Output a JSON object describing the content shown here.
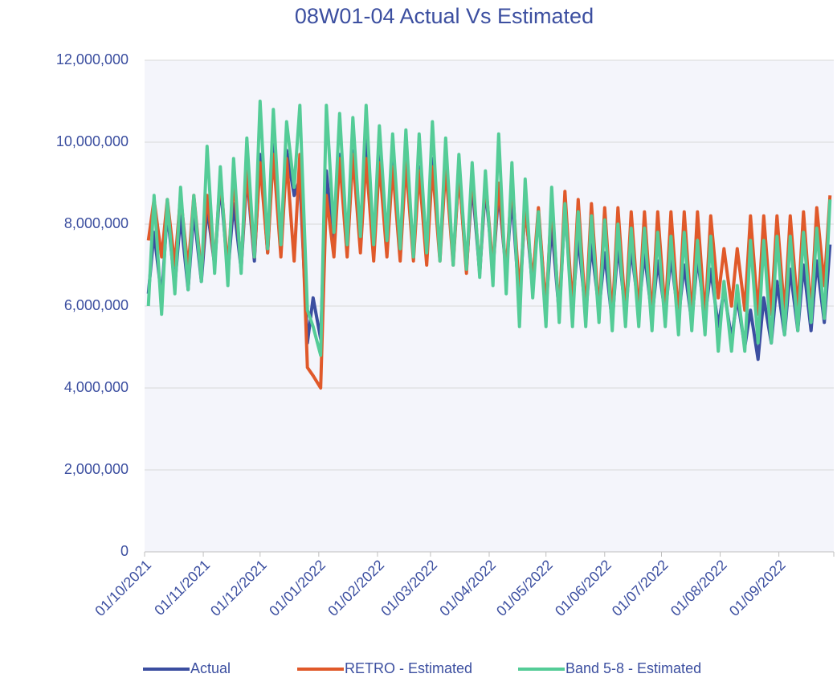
{
  "chart_data": {
    "type": "line",
    "title": "08W01-04 Actual Vs Estimated",
    "x": [
      "03/10/2021",
      "06/10/2021",
      "10/10/2021",
      "13/10/2021",
      "17/10/2021",
      "20/10/2021",
      "24/10/2021",
      "27/10/2021",
      "31/10/2021",
      "03/11/2021",
      "07/11/2021",
      "10/11/2021",
      "14/11/2021",
      "17/11/2021",
      "21/11/2021",
      "24/11/2021",
      "28/11/2021",
      "01/12/2021",
      "05/12/2021",
      "08/12/2021",
      "12/12/2021",
      "15/12/2021",
      "19/12/2021",
      "22/12/2021",
      "26/12/2021",
      "29/12/2021",
      "02/01/2022",
      "05/01/2022",
      "09/01/2022",
      "12/01/2022",
      "16/01/2022",
      "19/01/2022",
      "23/01/2022",
      "26/01/2022",
      "30/01/2022",
      "02/02/2022",
      "06/02/2022",
      "09/02/2022",
      "13/02/2022",
      "16/02/2022",
      "20/02/2022",
      "23/02/2022",
      "27/02/2022",
      "02/03/2022",
      "06/03/2022",
      "09/03/2022",
      "13/03/2022",
      "16/03/2022",
      "20/03/2022",
      "23/03/2022",
      "27/03/2022",
      "30/03/2022",
      "03/04/2022",
      "06/04/2022",
      "10/04/2022",
      "13/04/2022",
      "17/04/2022",
      "20/04/2022",
      "24/04/2022",
      "27/04/2022",
      "01/05/2022",
      "04/05/2022",
      "08/05/2022",
      "11/05/2022",
      "15/05/2022",
      "18/05/2022",
      "22/05/2022",
      "25/05/2022",
      "29/05/2022",
      "01/06/2022",
      "05/06/2022",
      "08/06/2022",
      "12/06/2022",
      "15/06/2022",
      "19/06/2022",
      "22/06/2022",
      "26/06/2022",
      "29/06/2022",
      "03/07/2022",
      "06/07/2022",
      "10/07/2022",
      "13/07/2022",
      "17/07/2022",
      "20/07/2022",
      "24/07/2022",
      "27/07/2022",
      "31/07/2022",
      "03/08/2022",
      "07/08/2022",
      "10/08/2022",
      "14/08/2022",
      "17/08/2022",
      "21/08/2022",
      "24/08/2022",
      "28/08/2022",
      "31/08/2022",
      "04/09/2022",
      "07/09/2022",
      "11/09/2022",
      "14/09/2022",
      "18/09/2022",
      "21/09/2022",
      "25/09/2022",
      "28/09/2022"
    ],
    "series": [
      {
        "name": "Actual",
        "color": "#3b4ea0",
        "values": [
          6300000,
          7800000,
          6200000,
          8300000,
          6500000,
          8200000,
          6400000,
          8300000,
          6600000,
          8400000,
          7000000,
          9000000,
          6800000,
          8500000,
          6900000,
          9200000,
          7100000,
          9700000,
          7300000,
          10000000,
          7500000,
          9800000,
          8700000,
          9100000,
          5100000,
          6200000,
          5200000,
          9300000,
          7400000,
          9700000,
          7300000,
          9800000,
          7500000,
          10300000,
          7300000,
          9700000,
          7400000,
          9500000,
          7200000,
          9800000,
          7300000,
          9400000,
          7200000,
          9600000,
          7300000,
          9500000,
          7100000,
          9300000,
          6900000,
          9000000,
          6800000,
          8900000,
          6900000,
          8800000,
          6800000,
          8700000,
          6000000,
          8500000,
          6400000,
          8300000,
          5900000,
          8000000,
          5800000,
          8400000,
          5900000,
          7700000,
          5800000,
          7500000,
          5900000,
          7300000,
          5600000,
          7500000,
          5800000,
          7400000,
          5900000,
          7300000,
          5700000,
          7100000,
          5800000,
          7200000,
          5700000,
          7000000,
          5600000,
          7200000,
          5700000,
          6900000,
          5500000,
          6400000,
          5200000,
          6200000,
          5000000,
          5900000,
          4700000,
          6200000,
          5100000,
          6600000,
          5300000,
          6900000,
          5400000,
          7000000,
          5400000,
          7100000,
          5600000,
          7500000
        ]
      },
      {
        "name": "RETRO - Estimated",
        "color": "#e0592a",
        "values": [
          7600000,
          8600000,
          7200000,
          8600000,
          7000000,
          8700000,
          6900000,
          8700000,
          6800000,
          8700000,
          7000000,
          9200000,
          6900000,
          9100000,
          7000000,
          9300000,
          7200000,
          9500000,
          7300000,
          9700000,
          7200000,
          9600000,
          7100000,
          9700000,
          4500000,
          4300000,
          4000000,
          8700000,
          7200000,
          9600000,
          7200000,
          9700000,
          7300000,
          9600000,
          7100000,
          9500000,
          7200000,
          9400000,
          7100000,
          9500000,
          7100000,
          9300000,
          7000000,
          9400000,
          7100000,
          9400000,
          7000000,
          9300000,
          6800000,
          9300000,
          6800000,
          9100000,
          6900000,
          9000000,
          6800000,
          9100000,
          6300000,
          8400000,
          6600000,
          8400000,
          5900000,
          8600000,
          5800000,
          8800000,
          5900000,
          8600000,
          5800000,
          8500000,
          5800000,
          8400000,
          5700000,
          8400000,
          5800000,
          8300000,
          5800000,
          8300000,
          5700000,
          8300000,
          5800000,
          8300000,
          5700000,
          8300000,
          5700000,
          8300000,
          5700000,
          8200000,
          6200000,
          7400000,
          6000000,
          7400000,
          5900000,
          8200000,
          5800000,
          8200000,
          5800000,
          8200000,
          5800000,
          8200000,
          5900000,
          8300000,
          5800000,
          8400000,
          6500000,
          8700000
        ]
      },
      {
        "name": "Band 5-8 - Estimated",
        "color": "#54cc97",
        "values": [
          6000000,
          8700000,
          5800000,
          8600000,
          6300000,
          8900000,
          6400000,
          8700000,
          6600000,
          9900000,
          6800000,
          9400000,
          6500000,
          9600000,
          6800000,
          10100000,
          7200000,
          11000000,
          7400000,
          10800000,
          7500000,
          10500000,
          8900000,
          10900000,
          5900000,
          5500000,
          4800000,
          10900000,
          7800000,
          10700000,
          7500000,
          10600000,
          7700000,
          10900000,
          7500000,
          10400000,
          7600000,
          10200000,
          7400000,
          10300000,
          7200000,
          10200000,
          7300000,
          10500000,
          7100000,
          10100000,
          7000000,
          9700000,
          6900000,
          9500000,
          6700000,
          9300000,
          6500000,
          10200000,
          6300000,
          9500000,
          5500000,
          9100000,
          6200000,
          8300000,
          5500000,
          8900000,
          5600000,
          8500000,
          5500000,
          8300000,
          5500000,
          8200000,
          5600000,
          8100000,
          5400000,
          8000000,
          5500000,
          7900000,
          5500000,
          7900000,
          5400000,
          7800000,
          5500000,
          7700000,
          5300000,
          7800000,
          5400000,
          7600000,
          5300000,
          7700000,
          4900000,
          6600000,
          4900000,
          6500000,
          4900000,
          7600000,
          5100000,
          7600000,
          5100000,
          7700000,
          5300000,
          7700000,
          5400000,
          7800000,
          5600000,
          7900000,
          5700000,
          8600000
        ]
      }
    ],
    "xlim": [
      "01/10/2021",
      "30/09/2022"
    ],
    "xticks": [
      "01/10/2021",
      "01/11/2021",
      "01/12/2021",
      "01/01/2022",
      "01/02/2022",
      "01/03/2022",
      "01/04/2022",
      "01/05/2022",
      "01/06/2022",
      "01/07/2022",
      "01/08/2022",
      "01/09/2022"
    ],
    "ylim": [
      0,
      12000000
    ],
    "yticks": [
      0,
      {
        "value": 2000000,
        "label": "2,000,000"
      },
      {
        "value": 4000000,
        "label": "4,000,000"
      },
      {
        "value": 6000000,
        "label": "6,000,000"
      },
      {
        "value": 8000000,
        "label": "8,000,000"
      },
      {
        "value": 10000000,
        "label": "10,000,000"
      },
      {
        "value": 12000000,
        "label": "12,000,000"
      }
    ],
    "grid": true,
    "legend": "bottom"
  }
}
